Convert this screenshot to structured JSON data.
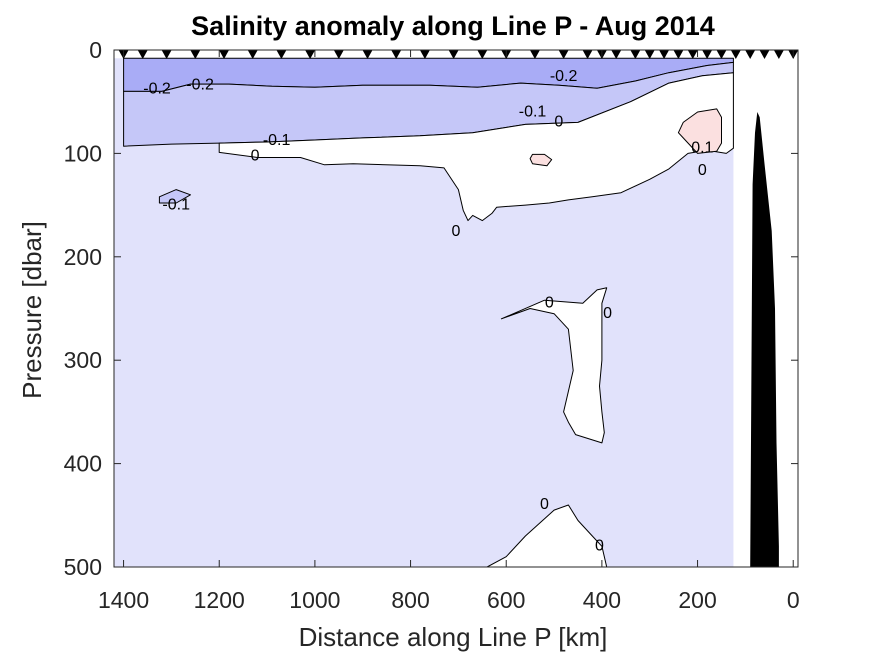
{
  "chart_data": {
    "type": "contour",
    "title": "Salinity anomaly along Line P - Aug 2014",
    "xlabel": "Distance along Line P [km]",
    "ylabel": "Pressure [dbar]",
    "x_reversed": true,
    "y_reversed": true,
    "xlim": [
      1420,
      -10
    ],
    "ylim": [
      0,
      500
    ],
    "xticks": [
      1400,
      1200,
      1000,
      800,
      600,
      400,
      200,
      0
    ],
    "yticks": [
      0,
      100,
      200,
      300,
      400,
      500
    ],
    "grid": false,
    "colors": {
      "anomaly_minus_0_2": "#a9acf6",
      "anomaly_minus_0_1": "#c5c7f8",
      "anomaly_0_to_minus_0_1": "#e1e2fb",
      "anomaly_zero": "#ffffff",
      "anomaly_plus_0_1": "#fbe0e0",
      "bathymetry": "#000000"
    },
    "station_markers_km": [
      1400,
      1360,
      1310,
      1250,
      1190,
      1130,
      1070,
      1010,
      950,
      890,
      830,
      770,
      710,
      650,
      600,
      540,
      480,
      430,
      400,
      370,
      330,
      300,
      270,
      240,
      210,
      180,
      150,
      120,
      90,
      60,
      30,
      0
    ],
    "regions": [
      {
        "name": "minus-0-2-band",
        "value": -0.2,
        "points": [
          [
            1400,
            8
          ],
          [
            125,
            8
          ],
          [
            125,
            12
          ],
          [
            180,
            15
          ],
          [
            260,
            22
          ],
          [
            330,
            30
          ],
          [
            410,
            37
          ],
          [
            490,
            34
          ],
          [
            570,
            32
          ],
          [
            660,
            36
          ],
          [
            760,
            34
          ],
          [
            900,
            34
          ],
          [
            1000,
            36
          ],
          [
            1090,
            35
          ],
          [
            1180,
            33
          ],
          [
            1260,
            33
          ],
          [
            1320,
            40
          ],
          [
            1400,
            40
          ]
        ]
      },
      {
        "name": "minus-0-1-band",
        "value": -0.1,
        "points": [
          [
            1400,
            40
          ],
          [
            1320,
            40
          ],
          [
            1260,
            33
          ],
          [
            1180,
            33
          ],
          [
            1090,
            35
          ],
          [
            1000,
            36
          ],
          [
            900,
            34
          ],
          [
            760,
            34
          ],
          [
            660,
            36
          ],
          [
            570,
            32
          ],
          [
            490,
            34
          ],
          [
            410,
            37
          ],
          [
            330,
            30
          ],
          [
            260,
            22
          ],
          [
            180,
            15
          ],
          [
            125,
            12
          ],
          [
            125,
            22
          ],
          [
            190,
            25
          ],
          [
            260,
            32
          ],
          [
            340,
            50
          ],
          [
            450,
            70
          ],
          [
            560,
            72
          ],
          [
            670,
            80
          ],
          [
            780,
            83
          ],
          [
            900,
            85
          ],
          [
            1000,
            87
          ],
          [
            1100,
            89
          ],
          [
            1200,
            90
          ],
          [
            1300,
            91
          ],
          [
            1400,
            93
          ]
        ]
      },
      {
        "name": "minus-0-1-patch",
        "value": -0.1,
        "points": [
          [
            1325,
            142
          ],
          [
            1290,
            135
          ],
          [
            1260,
            140
          ],
          [
            1290,
            148
          ],
          [
            1325,
            148
          ]
        ]
      },
      {
        "name": "zero-region-upper",
        "value": 0,
        "points": [
          [
            125,
            22
          ],
          [
            190,
            25
          ],
          [
            260,
            32
          ],
          [
            340,
            50
          ],
          [
            450,
            70
          ],
          [
            560,
            72
          ],
          [
            670,
            80
          ],
          [
            780,
            83
          ],
          [
            900,
            85
          ],
          [
            1000,
            87
          ],
          [
            1100,
            89
          ],
          [
            1200,
            90
          ],
          [
            1200,
            99
          ],
          [
            1120,
            104
          ],
          [
            1030,
            104
          ],
          [
            980,
            111
          ],
          [
            920,
            110
          ],
          [
            780,
            112
          ],
          [
            730,
            114
          ],
          [
            700,
            135
          ],
          [
            690,
            155
          ],
          [
            680,
            165
          ],
          [
            670,
            160
          ],
          [
            650,
            165
          ],
          [
            630,
            158
          ],
          [
            620,
            152
          ],
          [
            560,
            150
          ],
          [
            510,
            148
          ],
          [
            470,
            145
          ],
          [
            420,
            142
          ],
          [
            360,
            138
          ],
          [
            300,
            125
          ],
          [
            260,
            115
          ],
          [
            220,
            100
          ],
          [
            180,
            97
          ],
          [
            140,
            100
          ],
          [
            125,
            95
          ]
        ]
      },
      {
        "name": "zero-region-middle",
        "value": 0,
        "points": [
          [
            610,
            260
          ],
          [
            570,
            252
          ],
          [
            520,
            242
          ],
          [
            440,
            245
          ],
          [
            410,
            232
          ],
          [
            390,
            230
          ],
          [
            400,
            245
          ],
          [
            400,
            265
          ],
          [
            400,
            300
          ],
          [
            405,
            325
          ],
          [
            400,
            350
          ],
          [
            395,
            370
          ],
          [
            400,
            380
          ],
          [
            455,
            372
          ],
          [
            470,
            360
          ],
          [
            480,
            350
          ],
          [
            470,
            330
          ],
          [
            460,
            310
          ],
          [
            470,
            270
          ],
          [
            500,
            255
          ],
          [
            550,
            250
          ]
        ]
      },
      {
        "name": "zero-region-lower",
        "value": 0,
        "points": [
          [
            640,
            500
          ],
          [
            600,
            490
          ],
          [
            560,
            470
          ],
          [
            500,
            445
          ],
          [
            470,
            440
          ],
          [
            450,
            455
          ],
          [
            420,
            470
          ],
          [
            400,
            480
          ],
          [
            390,
            500
          ]
        ]
      },
      {
        "name": "plus-0-1-patch-east",
        "value": 0.1,
        "points": [
          [
            230,
            70
          ],
          [
            200,
            60
          ],
          [
            160,
            57
          ],
          [
            150,
            65
          ],
          [
            150,
            90
          ],
          [
            160,
            98
          ],
          [
            200,
            100
          ],
          [
            230,
            85
          ],
          [
            240,
            80
          ]
        ]
      },
      {
        "name": "plus-0-1-patch-west",
        "value": 0.1,
        "points": [
          [
            545,
            101
          ],
          [
            520,
            101
          ],
          [
            505,
            106
          ],
          [
            515,
            112
          ],
          [
            545,
            110
          ],
          [
            550,
            105
          ]
        ]
      },
      {
        "name": "bathymetry",
        "value": null,
        "points": [
          [
            -8,
            500
          ],
          [
            30,
            500
          ],
          [
            30,
            480
          ],
          [
            35,
            380
          ],
          [
            38,
            250
          ],
          [
            45,
            175
          ],
          [
            60,
            110
          ],
          [
            70,
            65
          ],
          [
            75,
            60
          ],
          [
            80,
            80
          ],
          [
            85,
            130
          ],
          [
            90,
            500
          ]
        ]
      }
    ],
    "contour_labels": [
      {
        "text": "-0.2",
        "x": 1330,
        "y": 38
      },
      {
        "text": "-0.2",
        "x": 1240,
        "y": 34
      },
      {
        "text": "-0.2",
        "x": 480,
        "y": 26
      },
      {
        "text": "-0.1",
        "x": 1080,
        "y": 88
      },
      {
        "text": "-0.1",
        "x": 545,
        "y": 60
      },
      {
        "text": "-0.1",
        "x": 1290,
        "y": 150
      },
      {
        "text": "0",
        "x": 1125,
        "y": 103
      },
      {
        "text": "0",
        "x": 490,
        "y": 70
      },
      {
        "text": "0",
        "x": 705,
        "y": 176
      },
      {
        "text": "0",
        "x": 510,
        "y": 245
      },
      {
        "text": "0",
        "x": 388,
        "y": 255
      },
      {
        "text": "0",
        "x": 520,
        "y": 440
      },
      {
        "text": "0",
        "x": 405,
        "y": 480
      },
      {
        "text": "0.1",
        "x": 190,
        "y": 95
      },
      {
        "text": "0",
        "x": 190,
        "y": 117
      }
    ]
  }
}
